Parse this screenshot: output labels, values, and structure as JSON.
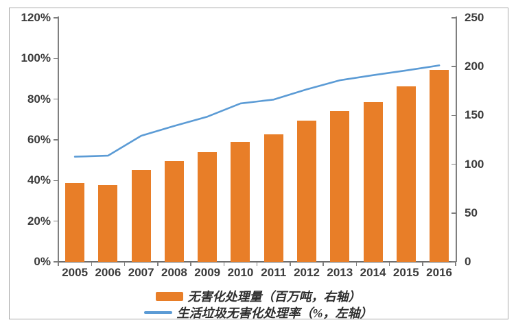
{
  "chart_data": {
    "type": "bar",
    "subtype": "combo-bar-line-dual-axis",
    "categories": [
      "2005",
      "2006",
      "2007",
      "2008",
      "2009",
      "2010",
      "2011",
      "2012",
      "2013",
      "2014",
      "2015",
      "2016"
    ],
    "series": [
      {
        "name": "无害化处理量（百万吨，右轴）",
        "type": "bar",
        "axis": "right",
        "color": "#e87e28",
        "values": [
          80.5,
          78.4,
          94.4,
          103.1,
          112.3,
          123.2,
          130.9,
          144.9,
          154.4,
          163.9,
          180.1,
          196.7
        ]
      },
      {
        "name": "生活垃圾无害化处理率（%，左轴）",
        "type": "line",
        "axis": "left",
        "color": "#5b9bd5",
        "values": [
          51.7,
          52.2,
          62.0,
          66.8,
          71.4,
          77.9,
          79.8,
          84.8,
          89.3,
          91.8,
          94.1,
          96.6
        ]
      }
    ],
    "left_axis": {
      "tick_labels": [
        "0%",
        "20%",
        "40%",
        "60%",
        "80%",
        "100%",
        "120%"
      ],
      "min": 0,
      "max": 120
    },
    "right_axis": {
      "tick_labels": [
        "0",
        "50",
        "100",
        "150",
        "200",
        "250"
      ],
      "min": 0,
      "max": 250
    },
    "grid": false,
    "legend_position": "bottom",
    "title": ""
  },
  "legend": {
    "items": [
      {
        "label": "无害化处理量（百万吨，右轴）",
        "swatch": "bar",
        "color": "#e87e28"
      },
      {
        "label": "生活垃圾无害化处理率（%，左轴）",
        "swatch": "line",
        "color": "#5b9bd5"
      }
    ]
  }
}
